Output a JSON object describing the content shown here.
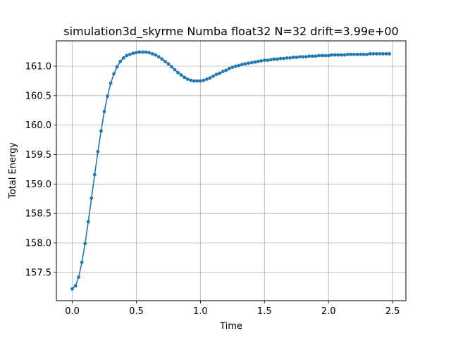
{
  "chart_data": {
    "type": "line",
    "title": "simulation3d_skyrme Numba float32 N=32 drift=3.99e+00",
    "xlabel": "Time",
    "ylabel": "Total Energy",
    "xlim": [
      -0.124,
      2.604
    ],
    "ylim": [
      157.02,
      161.43
    ],
    "xticks": [
      0.0,
      0.5,
      1.0,
      1.5,
      2.0,
      2.5
    ],
    "xtick_labels": [
      "0.0",
      "0.5",
      "1.0",
      "1.5",
      "2.0",
      "2.5"
    ],
    "yticks": [
      157.5,
      158.0,
      158.5,
      159.0,
      159.5,
      160.0,
      160.5,
      161.0
    ],
    "ytick_labels": [
      "157.5",
      "158.0",
      "158.5",
      "159.0",
      "159.5",
      "160.0",
      "160.5",
      "161.0"
    ],
    "grid": true,
    "line_color": "#1f77b4",
    "marker": "circle",
    "series": [
      {
        "x": [
          0.0,
          0.025,
          0.05,
          0.075,
          0.1,
          0.125,
          0.15,
          0.175,
          0.2,
          0.225,
          0.25,
          0.275,
          0.3,
          0.325,
          0.35,
          0.375,
          0.4,
          0.425,
          0.45,
          0.475,
          0.5,
          0.525,
          0.55,
          0.575,
          0.6,
          0.625,
          0.65,
          0.675,
          0.7,
          0.725,
          0.75,
          0.775,
          0.8,
          0.825,
          0.85,
          0.875,
          0.9,
          0.925,
          0.95,
          0.975,
          1.0,
          1.025,
          1.05,
          1.075,
          1.1,
          1.125,
          1.15,
          1.175,
          1.2,
          1.225,
          1.25,
          1.275,
          1.3,
          1.325,
          1.35,
          1.375,
          1.4,
          1.425,
          1.45,
          1.475,
          1.5,
          1.525,
          1.55,
          1.575,
          1.6,
          1.625,
          1.65,
          1.675,
          1.7,
          1.725,
          1.75,
          1.775,
          1.8,
          1.825,
          1.85,
          1.875,
          1.9,
          1.925,
          1.95,
          1.975,
          2.0,
          2.025,
          2.05,
          2.075,
          2.1,
          2.125,
          2.15,
          2.175,
          2.2,
          2.225,
          2.25,
          2.275,
          2.3,
          2.325,
          2.35,
          2.375,
          2.4,
          2.425,
          2.45,
          2.475
        ],
        "y": [
          157.22,
          157.27,
          157.42,
          157.67,
          157.99,
          158.36,
          158.76,
          159.16,
          159.55,
          159.9,
          160.23,
          160.49,
          160.71,
          160.87,
          160.99,
          161.08,
          161.14,
          161.18,
          161.2,
          161.22,
          161.23,
          161.24,
          161.24,
          161.24,
          161.23,
          161.21,
          161.19,
          161.16,
          161.12,
          161.08,
          161.04,
          160.99,
          160.94,
          160.89,
          160.85,
          160.81,
          160.78,
          160.76,
          160.75,
          160.75,
          160.75,
          160.76,
          160.78,
          160.8,
          160.83,
          160.86,
          160.88,
          160.91,
          160.93,
          160.96,
          160.98,
          161.0,
          161.01,
          161.03,
          161.04,
          161.05,
          161.06,
          161.07,
          161.08,
          161.09,
          161.1,
          161.1,
          161.11,
          161.12,
          161.12,
          161.13,
          161.13,
          161.14,
          161.14,
          161.15,
          161.15,
          161.16,
          161.16,
          161.16,
          161.17,
          161.17,
          161.17,
          161.18,
          161.18,
          161.18,
          161.18,
          161.19,
          161.19,
          161.19,
          161.19,
          161.19,
          161.2,
          161.2,
          161.2,
          161.2,
          161.2,
          161.2,
          161.2,
          161.21,
          161.21,
          161.21,
          161.21,
          161.21,
          161.21,
          161.21
        ]
      }
    ]
  }
}
